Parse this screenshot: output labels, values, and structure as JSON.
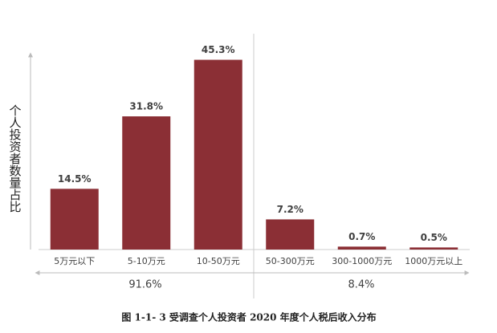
{
  "chart_data": {
    "type": "bar",
    "title": "图 1-1- 3 受调查个人投资者 2020 年度个人税后收入分布",
    "y_label": "个人投资者数量占比",
    "categories": [
      "5万元以下",
      "5-10万元",
      "10-50万元",
      "50-300万元",
      "300-1000万元",
      "1000万元以上"
    ],
    "values": [
      14.5,
      31.8,
      45.3,
      7.2,
      0.7,
      0.5
    ],
    "value_labels": [
      "14.5%",
      "31.8%",
      "45.3%",
      "7.2%",
      "0.7%",
      "0.5%"
    ],
    "group_labels": [
      "91.6%",
      "8.4%"
    ],
    "color": "#8b2f35",
    "ylim": [
      0,
      50
    ]
  }
}
